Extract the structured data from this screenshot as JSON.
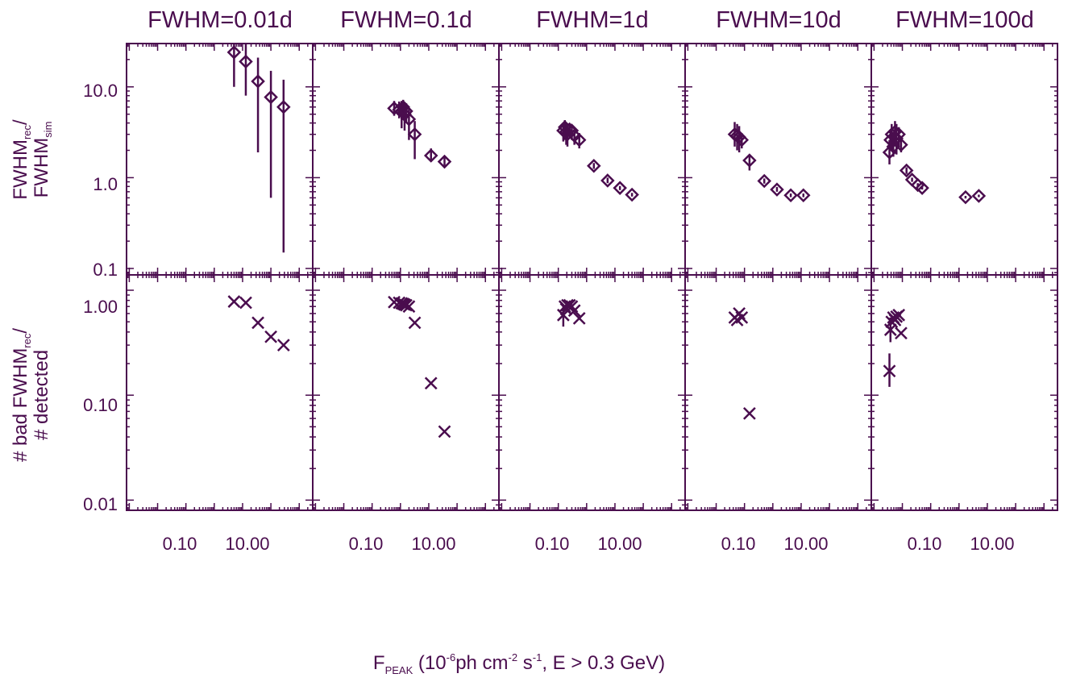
{
  "chart_data": {
    "type": "scatter",
    "color": "#4a0d4e",
    "panel_titles": [
      "FWHM=0.01d",
      "FWHM=0.1d",
      "FWHM=1d",
      "FWHM=10d",
      "FWHM=100d"
    ],
    "xlabel": {
      "main": "F",
      "sub": "PEAK",
      "rest1": " (10",
      "sup1": "-6",
      "rest2": "ph cm",
      "sup2": "-2",
      "rest3": " s",
      "sup3": "-1",
      "rest4": ", E > 0.3 GeV)"
    },
    "top_ylabel": {
      "line1_main": "FWHM",
      "line1_sub": "rec",
      "line1_end": "/",
      "line2_main": "FWHM",
      "line2_sub": "sim"
    },
    "bottom_ylabel": {
      "line1_main": "# bad FWHM",
      "line1_sub": "rec",
      "line1_end": "/",
      "line2_main": "# detected"
    },
    "xscale": "log",
    "xlim": [
      0.0008,
      3000
    ],
    "xtick_labels": [
      "0.10",
      "10.00"
    ],
    "xtick_values": [
      0.1,
      10
    ],
    "top_yscale": "log",
    "top_ylim": [
      0.085,
      30
    ],
    "top_ytick_labels": [
      "0.1",
      "1.0",
      "10.0"
    ],
    "top_ytick_values": [
      0.1,
      1,
      10
    ],
    "bottom_yscale": "log",
    "bottom_ylim": [
      0.008,
      1.4
    ],
    "bottom_ytick_labels": [
      "0.01",
      "0.10",
      "1.00"
    ],
    "bottom_ytick_values": [
      0.01,
      0.1,
      1
    ],
    "top_marker": "diamond",
    "bottom_marker": "cross",
    "top": [
      [
        {
          "x": 5.0,
          "y": 24,
          "lo": 10,
          "hi": 32
        },
        {
          "x": 13,
          "y": 19,
          "lo": 8,
          "hi": 32
        },
        {
          "x": 35,
          "y": 11.5,
          "lo": 1.9,
          "hi": 21
        },
        {
          "x": 100,
          "y": 7.7,
          "lo": 0.6,
          "hi": 15
        },
        {
          "x": 280,
          "y": 6.0,
          "lo": 0.15,
          "hi": 12
        }
      ],
      [
        {
          "x": 0.6,
          "y": 5.8,
          "lo": 4.8,
          "hi": 7.0
        },
        {
          "x": 0.9,
          "y": 5.6,
          "lo": 4.5,
          "hi": 6.9
        },
        {
          "x": 1.1,
          "y": 5.4,
          "lo": 3.5,
          "hi": 7.0
        },
        {
          "x": 1.25,
          "y": 6.0,
          "lo": 4.5,
          "hi": 7.2
        },
        {
          "x": 1.4,
          "y": 5.0,
          "lo": 3.3,
          "hi": 6.8
        },
        {
          "x": 1.6,
          "y": 5.4,
          "lo": 4.0,
          "hi": 6.6
        },
        {
          "x": 2.0,
          "y": 4.4,
          "lo": 2.6,
          "hi": 5.8
        },
        {
          "x": 3.2,
          "y": 3.0,
          "lo": 1.6,
          "hi": 4.2
        },
        {
          "x": 12,
          "y": 1.75,
          "lo": 1.5,
          "hi": 2.1
        },
        {
          "x": 36,
          "y": 1.5,
          "lo": 1.35,
          "hi": 1.7
        }
      ],
      [
        {
          "x": 0.15,
          "y": 3.3,
          "lo": 2.5,
          "hi": 3.9
        },
        {
          "x": 0.17,
          "y": 3.6,
          "lo": 2.6,
          "hi": 4.3
        },
        {
          "x": 0.19,
          "y": 3.2,
          "lo": 2.3,
          "hi": 4.0
        },
        {
          "x": 0.21,
          "y": 3.0,
          "lo": 2.2,
          "hi": 3.9
        },
        {
          "x": 0.25,
          "y": 3.4,
          "lo": 2.7,
          "hi": 3.9
        },
        {
          "x": 0.3,
          "y": 3.3,
          "lo": 2.6,
          "hi": 3.8
        },
        {
          "x": 0.37,
          "y": 2.9,
          "lo": 2.3,
          "hi": 3.5
        },
        {
          "x": 0.55,
          "y": 2.6,
          "lo": 2.1,
          "hi": 3.1
        },
        {
          "x": 1.8,
          "y": 1.35,
          "lo": 1.25,
          "hi": 1.45
        },
        {
          "x": 5.5,
          "y": 0.93,
          "lo": 0.87,
          "hi": 1.0
        },
        {
          "x": 15,
          "y": 0.77,
          "lo": 0.73,
          "hi": 0.81
        },
        {
          "x": 40,
          "y": 0.65,
          "lo": 0.62,
          "hi": 0.68
        }
      ],
      [
        {
          "x": 0.045,
          "y": 3.0,
          "lo": 2.2,
          "hi": 4.1
        },
        {
          "x": 0.055,
          "y": 2.9,
          "lo": 2.0,
          "hi": 3.9
        },
        {
          "x": 0.065,
          "y": 2.8,
          "lo": 1.9,
          "hi": 3.7
        },
        {
          "x": 0.08,
          "y": 2.6,
          "lo": 2.1,
          "hi": 3.1
        },
        {
          "x": 0.15,
          "y": 1.55,
          "lo": 1.2,
          "hi": 1.8
        },
        {
          "x": 0.5,
          "y": 0.92,
          "lo": 0.86,
          "hi": 0.98
        },
        {
          "x": 1.4,
          "y": 0.74,
          "lo": 0.7,
          "hi": 0.79
        },
        {
          "x": 4.3,
          "y": 0.64,
          "lo": 0.61,
          "hi": 0.67
        },
        {
          "x": 12,
          "y": 0.64,
          "lo": 0.61,
          "hi": 0.67
        }
      ],
      [
        {
          "x": 0.0035,
          "y": 1.9,
          "lo": 1.4,
          "hi": 2.6
        },
        {
          "x": 0.0038,
          "y": 2.6,
          "lo": 2.0,
          "hi": 3.3
        },
        {
          "x": 0.0042,
          "y": 3.0,
          "lo": 2.1,
          "hi": 3.9
        },
        {
          "x": 0.0048,
          "y": 2.2,
          "lo": 1.7,
          "hi": 3.2
        },
        {
          "x": 0.0055,
          "y": 3.2,
          "lo": 2.2,
          "hi": 4.2
        },
        {
          "x": 0.0062,
          "y": 2.7,
          "lo": 1.8,
          "hi": 3.9
        },
        {
          "x": 0.0075,
          "y": 3.0,
          "lo": 2.2,
          "hi": 3.6
        },
        {
          "x": 0.009,
          "y": 2.3,
          "lo": 1.9,
          "hi": 2.7
        },
        {
          "x": 0.014,
          "y": 1.2,
          "lo": 1.1,
          "hi": 1.3
        },
        {
          "x": 0.022,
          "y": 0.95,
          "lo": 0.9,
          "hi": 1.0
        },
        {
          "x": 0.035,
          "y": 0.83,
          "lo": 0.79,
          "hi": 0.87
        },
        {
          "x": 0.05,
          "y": 0.77,
          "lo": 0.74,
          "hi": 0.8
        },
        {
          "x": 1.7,
          "y": 0.61,
          "lo": 0.59,
          "hi": 0.63
        },
        {
          "x": 5.0,
          "y": 0.63,
          "lo": 0.61,
          "hi": 0.65
        }
      ]
    ],
    "bottom": [
      [
        {
          "x": 5.0,
          "y": 0.78
        },
        {
          "x": 13,
          "y": 0.76
        },
        {
          "x": 35,
          "y": 0.49
        },
        {
          "x": 100,
          "y": 0.36
        },
        {
          "x": 280,
          "y": 0.3
        }
      ],
      [
        {
          "x": 0.6,
          "y": 0.77
        },
        {
          "x": 0.9,
          "y": 0.76
        },
        {
          "x": 1.1,
          "y": 0.75
        },
        {
          "x": 1.25,
          "y": 0.74
        },
        {
          "x": 1.4,
          "y": 0.73
        },
        {
          "x": 1.6,
          "y": 0.72
        },
        {
          "x": 2.0,
          "y": 0.7
        },
        {
          "x": 3.2,
          "y": 0.49
        },
        {
          "x": 12,
          "y": 0.13
        },
        {
          "x": 36,
          "y": 0.045
        }
      ],
      [
        {
          "x": 0.15,
          "y": 0.58,
          "lo": 0.45,
          "hi": 0.7
        },
        {
          "x": 0.17,
          "y": 0.7
        },
        {
          "x": 0.19,
          "y": 0.66
        },
        {
          "x": 0.21,
          "y": 0.72
        },
        {
          "x": 0.25,
          "y": 0.72
        },
        {
          "x": 0.3,
          "y": 0.7
        },
        {
          "x": 0.37,
          "y": 0.64
        },
        {
          "x": 0.55,
          "y": 0.54
        }
      ],
      [
        {
          "x": 0.045,
          "y": 0.55
        },
        {
          "x": 0.055,
          "y": 0.52
        },
        {
          "x": 0.065,
          "y": 0.6
        },
        {
          "x": 0.08,
          "y": 0.55
        },
        {
          "x": 0.15,
          "y": 0.067
        }
      ],
      [
        {
          "x": 0.0035,
          "y": 0.17,
          "lo": 0.12,
          "hi": 0.25
        },
        {
          "x": 0.0038,
          "y": 0.42,
          "lo": 0.32,
          "hi": 0.55
        },
        {
          "x": 0.0042,
          "y": 0.5
        },
        {
          "x": 0.0048,
          "y": 0.55
        },
        {
          "x": 0.0055,
          "y": 0.52
        },
        {
          "x": 0.0062,
          "y": 0.56
        },
        {
          "x": 0.0075,
          "y": 0.58
        },
        {
          "x": 0.009,
          "y": 0.39
        }
      ]
    ]
  }
}
